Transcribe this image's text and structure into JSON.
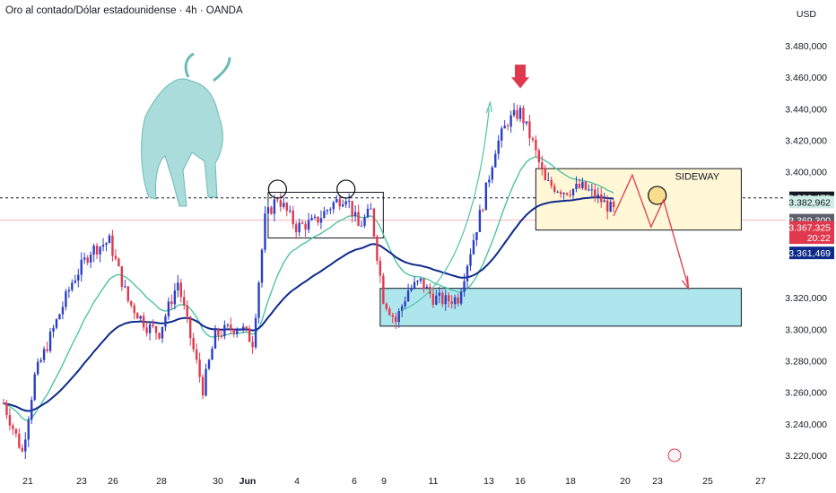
{
  "header": {
    "title": "Oro al contado/Dólar estadounidense · 4h · OANDA",
    "currency": "USD"
  },
  "colors": {
    "up": "#2a3fc6",
    "down": "#e0394e",
    "ema_fast": "#4ec3a3",
    "ema_slow": "#0e2a8a",
    "zone_range": "#fff7d6",
    "zone_support": "#aee6ee",
    "projection": "#e0394e"
  },
  "chart_data": {
    "type": "candlestick",
    "y_ticks": [
      "3.480,000",
      "3.460,000",
      "3.440,000",
      "3.420,000",
      "3.400,000",
      "3.320,000",
      "3.300,000",
      "3.280,000",
      "3.260,000",
      "3.240,000",
      "3.220,000"
    ],
    "y_tick_values": [
      3480,
      3460,
      3440,
      3420,
      3400,
      3320,
      3300,
      3280,
      3260,
      3240,
      3220
    ],
    "x_ticks": [
      "21",
      "23",
      "26",
      "28",
      "30",
      "Jun",
      "4",
      "6",
      "9",
      "11",
      "13",
      "16",
      "18",
      "20",
      "23",
      "25",
      "27"
    ],
    "ylim": [
      3212,
      3492
    ],
    "price_badges": [
      {
        "text": "3.383,478",
        "value": 3383.478,
        "bg": "#131722",
        "fg": "#ffffff"
      },
      {
        "text": "3.382,962",
        "value": 3380.8,
        "bg": "#cfeee6",
        "fg": "#131722"
      },
      {
        "text": "3.369,300",
        "value": 3369.3,
        "bg": "#5d606b",
        "fg": "#ffffff"
      },
      {
        "text": "3.367,325",
        "value": 3364.8,
        "bg": "#e0394e",
        "fg": "#ffffff"
      },
      {
        "text": "20:22",
        "value": 3358.2,
        "bg": "#e0394e",
        "fg": "#ffffff"
      },
      {
        "text": "3.361,469",
        "value": 3348.5,
        "bg": "#0e2a8a",
        "fg": "#ffffff"
      }
    ],
    "annotation_label": "SIDEWAY",
    "zones": [
      {
        "name": "range-box-1",
        "i_start": 85,
        "i_end": 122,
        "y_top": 3387,
        "y_bottom": 3358
      },
      {
        "name": "sideway-zone",
        "i_start": 171,
        "i_end": 237,
        "y_top": 3402,
        "y_bottom": 3363
      },
      {
        "name": "support-zone",
        "i_start": 121,
        "i_end": 237,
        "y_top": 3326,
        "y_bottom": 3302
      }
    ],
    "anchors": [
      [
        0,
        3253
      ],
      [
        6,
        3222
      ],
      [
        10,
        3270
      ],
      [
        16,
        3300
      ],
      [
        22,
        3330
      ],
      [
        28,
        3350
      ],
      [
        34,
        3356
      ],
      [
        40,
        3318
      ],
      [
        46,
        3302
      ],
      [
        50,
        3298
      ],
      [
        56,
        3330
      ],
      [
        60,
        3295
      ],
      [
        64,
        3262
      ],
      [
        68,
        3296
      ],
      [
        72,
        3300
      ],
      [
        76,
        3302
      ],
      [
        80,
        3292
      ],
      [
        84,
        3370
      ],
      [
        88,
        3384
      ],
      [
        94,
        3365
      ],
      [
        100,
        3368
      ],
      [
        106,
        3380
      ],
      [
        110,
        3385
      ],
      [
        114,
        3365
      ],
      [
        118,
        3375
      ],
      [
        122,
        3320
      ],
      [
        126,
        3305
      ],
      [
        130,
        3325
      ],
      [
        134,
        3330
      ],
      [
        138,
        3320
      ],
      [
        142,
        3318
      ],
      [
        146,
        3320
      ],
      [
        150,
        3350
      ],
      [
        154,
        3380
      ],
      [
        158,
        3415
      ],
      [
        162,
        3432
      ],
      [
        166,
        3438
      ],
      [
        170,
        3418
      ],
      [
        174,
        3393
      ],
      [
        180,
        3388
      ],
      [
        186,
        3390
      ],
      [
        190,
        3385
      ],
      [
        196,
        3375
      ]
    ]
  }
}
